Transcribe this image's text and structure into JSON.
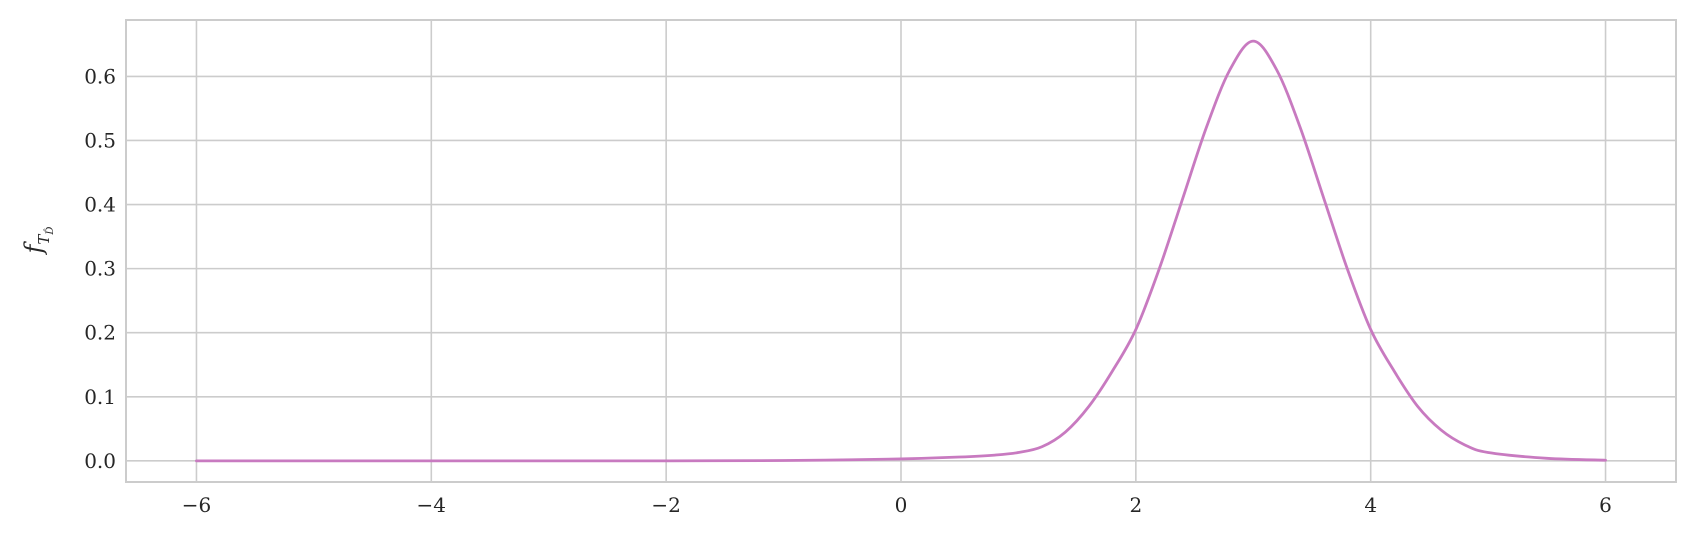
{
  "chart_data": {
    "type": "line",
    "title": "",
    "xlabel": "",
    "ylabel": "f",
    "ylabel_subscript": "T",
    "ylabel_sub_subscript": "D̂",
    "xlim": [
      -6.6,
      6.6
    ],
    "ylim": [
      -0.033,
      0.688
    ],
    "x_ticks": [
      -6,
      -4,
      -2,
      0,
      2,
      4,
      6
    ],
    "x_tick_labels": [
      "−6",
      "−4",
      "−2",
      "0",
      "2",
      "4",
      "6"
    ],
    "y_ticks": [
      0.0,
      0.1,
      0.2,
      0.3,
      0.4,
      0.5,
      0.6
    ],
    "y_tick_labels": [
      "0.0",
      "0.1",
      "0.2",
      "0.3",
      "0.4",
      "0.5",
      "0.6"
    ],
    "grid": true,
    "series": [
      {
        "color": "#c87ac0",
        "x": [
          -6,
          -5,
          -4,
          -3,
          -2,
          -1,
          -0.5,
          0,
          0.5,
          0.8,
          1.0,
          1.2,
          1.4,
          1.6,
          1.8,
          2.0,
          2.2,
          2.4,
          2.6,
          2.8,
          3.0,
          3.2,
          3.4,
          3.6,
          3.8,
          4.0,
          4.2,
          4.4,
          4.6,
          4.8,
          5.0,
          5.5,
          6.0
        ],
        "y": [
          0.0,
          0.0,
          0.0,
          0.0,
          0.0,
          0.0005,
          0.0015,
          0.003,
          0.006,
          0.009,
          0.013,
          0.022,
          0.045,
          0.085,
          0.14,
          0.205,
          0.3,
          0.41,
          0.52,
          0.61,
          0.655,
          0.61,
          0.52,
          0.41,
          0.3,
          0.205,
          0.14,
          0.085,
          0.048,
          0.025,
          0.013,
          0.004,
          0.001
        ]
      }
    ]
  }
}
